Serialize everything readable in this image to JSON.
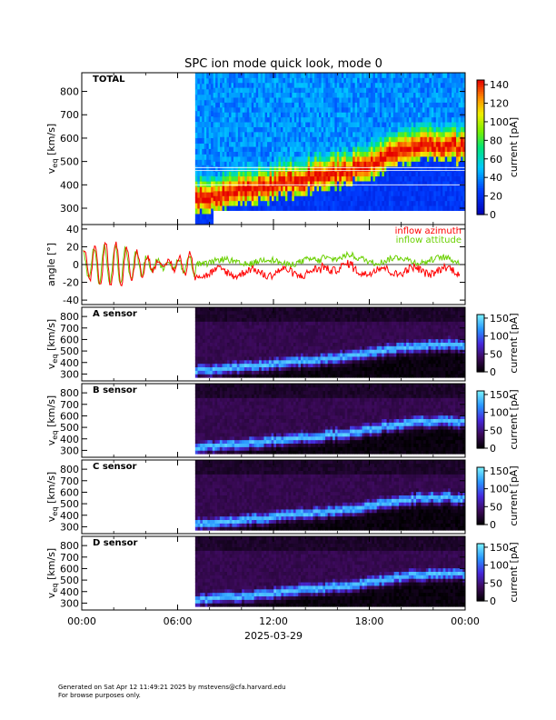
{
  "chart_data": {
    "title": "SPC ion mode quick look, mode 0",
    "type": "heatmap",
    "x": {
      "tick_labels": [
        "00:00",
        "06:00",
        "12:00",
        "18:00",
        "00:00"
      ],
      "tick_hours": [
        0,
        6,
        12,
        18,
        24
      ],
      "range_hours": [
        0,
        24
      ],
      "date_label": "2025-03-29"
    },
    "data_start_hour": 7.1,
    "total": {
      "label": "TOTAL",
      "ylabel": "v_eq [km/s]",
      "ylim": [
        230,
        880
      ],
      "yticks": [
        300,
        400,
        500,
        600,
        700,
        800
      ],
      "colorbar": {
        "label": "current [pA]",
        "min": 0,
        "max": 145,
        "ticks": [
          0,
          20,
          40,
          60,
          80,
          100,
          120,
          140
        ]
      },
      "speed_trend": [
        [
          7.1,
          340
        ],
        [
          9,
          360
        ],
        [
          11,
          385
        ],
        [
          13,
          415
        ],
        [
          15,
          440
        ],
        [
          17,
          470
        ],
        [
          19,
          520
        ],
        [
          21,
          560
        ],
        [
          23,
          570
        ],
        [
          23.5,
          560
        ]
      ]
    },
    "angle": {
      "ylabel": "angle [°]",
      "ylim": [
        -45,
        45
      ],
      "yticks": [
        -40,
        -20,
        0,
        20,
        40
      ],
      "series": [
        {
          "name": "inflow azimuth",
          "color": "#ff0000"
        },
        {
          "name": "inflow attitude",
          "color": "#6ad000"
        }
      ]
    },
    "sensors": [
      {
        "label": "A sensor"
      },
      {
        "label": "B sensor"
      },
      {
        "label": "C sensor"
      },
      {
        "label": "D sensor"
      }
    ],
    "sensor_axes": {
      "ylabel": "v_eq [km/s]",
      "ylim": [
        240,
        880
      ],
      "yticks": [
        300,
        400,
        500,
        600,
        700,
        800
      ],
      "colorbar": {
        "label": "current [pA]",
        "min": 0,
        "max": 160,
        "ticks": [
          0,
          50,
          100,
          150
        ]
      }
    }
  },
  "footer": {
    "line1": "Generated on Sat Apr 12 11:49:21 2025 by mstevens@cfa.harvard.edu",
    "line2": "For browse purposes only."
  }
}
